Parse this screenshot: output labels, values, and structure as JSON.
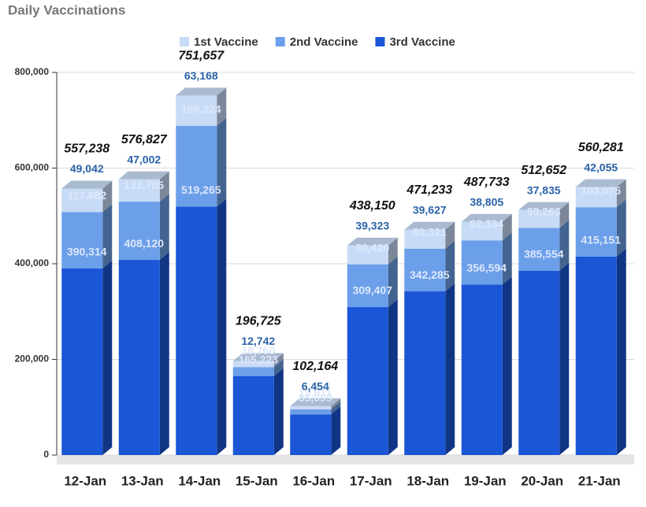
{
  "chart_data": {
    "type": "bar3d-stacked",
    "title": "Daily Vaccinations",
    "categories": [
      "12-Jan",
      "13-Jan",
      "14-Jan",
      "15-Jan",
      "16-Jan",
      "17-Jan",
      "18-Jan",
      "19-Jan",
      "20-Jan",
      "21-Jan"
    ],
    "series": [
      {
        "name": "3rd Vaccine",
        "color": "#1a56d6",
        "values": [
          390314,
          408120,
          519265,
          165223,
          85099,
          309407,
          342285,
          356594,
          385554,
          415151
        ],
        "value_labels": [
          "390,314",
          "408,120",
          "519,265",
          "165,223",
          "85,099",
          "309,407",
          "342,285",
          "356,594",
          "385,554",
          "415,151"
        ]
      },
      {
        "name": "2nd Vaccine",
        "color": "#6c9fe9",
        "values": [
          117882,
          121705,
          169224,
          18760,
          10611,
          89420,
          89321,
          92334,
          89263,
          103075
        ],
        "value_labels": [
          "117,882",
          "121,705",
          "169,224",
          "18,760",
          "10,611",
          "89,420",
          "89,321",
          "92,334",
          "89,263",
          "103,075"
        ]
      },
      {
        "name": "1st Vaccine",
        "color": "#c8dbf6",
        "values": [
          49042,
          47002,
          63168,
          12742,
          6454,
          39323,
          39627,
          38805,
          37835,
          42055
        ],
        "value_labels": [
          "49,042",
          "47,002",
          "63,168",
          "12,742",
          "6,454",
          "39,323",
          "39,627",
          "38,805",
          "37,835",
          "42,055"
        ]
      }
    ],
    "totals": [
      557238,
      576827,
      751657,
      196725,
      102164,
      438150,
      471233,
      487733,
      512652,
      560281
    ],
    "total_labels": [
      "557,238",
      "576,827",
      "751,657",
      "196,725",
      "102,164",
      "438,150",
      "471,233",
      "487,733",
      "512,652",
      "560,281"
    ],
    "ylim": [
      0,
      800000
    ],
    "yticks": [
      0,
      {
        "value": 200000,
        "label": "200,000"
      },
      {
        "value": 400000,
        "label": "400,000"
      },
      {
        "value": 600000,
        "label": "600,000"
      },
      {
        "value": 800000,
        "label": "800,000"
      }
    ],
    "grid": true,
    "legend": "top"
  }
}
